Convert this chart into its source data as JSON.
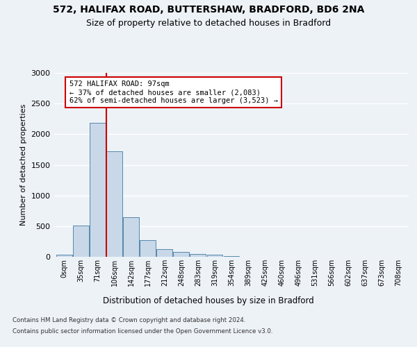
{
  "title1": "572, HALIFAX ROAD, BUTTERSHAW, BRADFORD, BD6 2NA",
  "title2": "Size of property relative to detached houses in Bradford",
  "xlabel": "Distribution of detached houses by size in Bradford",
  "ylabel": "Number of detached properties",
  "bar_labels": [
    "0sqm",
    "35sqm",
    "71sqm",
    "106sqm",
    "142sqm",
    "177sqm",
    "212sqm",
    "248sqm",
    "283sqm",
    "319sqm",
    "354sqm",
    "389sqm",
    "425sqm",
    "460sqm",
    "496sqm",
    "531sqm",
    "566sqm",
    "602sqm",
    "637sqm",
    "673sqm",
    "708sqm"
  ],
  "bar_values": [
    30,
    510,
    2190,
    1720,
    640,
    270,
    130,
    75,
    45,
    30,
    10,
    5,
    5,
    5,
    2,
    2,
    0,
    0,
    0,
    0,
    0
  ],
  "bar_color": "#c8d8e8",
  "bar_edge_color": "#5588aa",
  "vline_color": "#cc0000",
  "annotation_text": "572 HALIFAX ROAD: 97sqm\n← 37% of detached houses are smaller (2,083)\n62% of semi-detached houses are larger (3,523) →",
  "annotation_box_color": "#ffffff",
  "annotation_box_edge": "#cc0000",
  "ylim": [
    0,
    3000
  ],
  "yticks": [
    0,
    500,
    1000,
    1500,
    2000,
    2500,
    3000
  ],
  "footnote1": "Contains HM Land Registry data © Crown copyright and database right 2024.",
  "footnote2": "Contains public sector information licensed under the Open Government Licence v3.0.",
  "background_color": "#edf2f7",
  "grid_color": "#ffffff"
}
